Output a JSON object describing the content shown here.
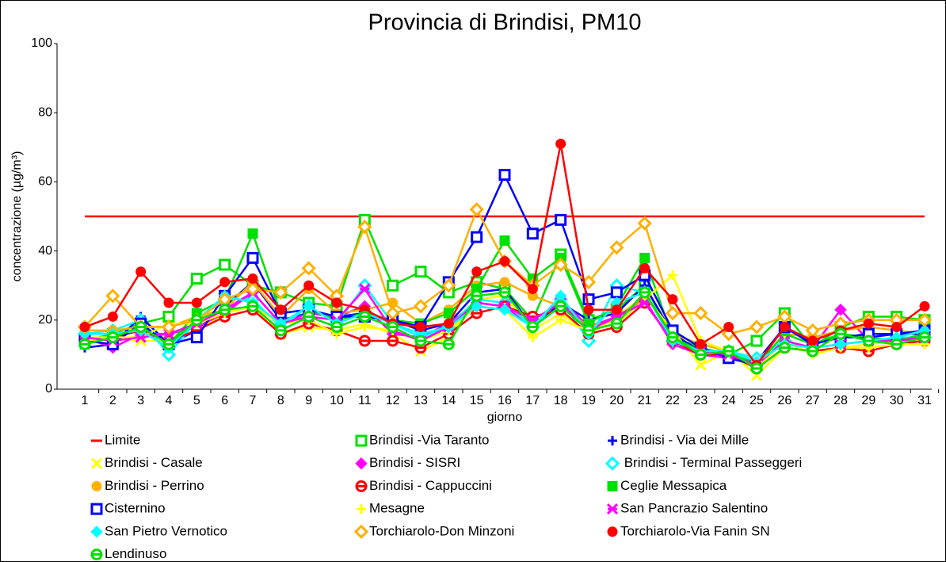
{
  "chart_data": {
    "type": "line",
    "title": "Provincia di Brindisi, PM10",
    "x_label": "giorno",
    "y_label": "concentrazione (µg/m³)",
    "categories": [
      "1",
      "2",
      "3",
      "4",
      "5",
      "6",
      "7",
      "8",
      "9",
      "10",
      "11",
      "12",
      "13",
      "14",
      "15",
      "16",
      "17",
      "18",
      "19",
      "20",
      "21",
      "22",
      "23",
      "24",
      "25",
      "26",
      "27",
      "28",
      "29",
      "30",
      "31"
    ],
    "ylim": [
      0,
      100
    ],
    "yticks": [
      0,
      20,
      40,
      60,
      80,
      100
    ],
    "grid": false,
    "series": [
      {
        "name": "Limite",
        "color": "#ff0000",
        "marker": "none",
        "values": [
          50,
          50,
          50,
          50,
          50,
          50,
          50,
          50,
          50,
          50,
          50,
          50,
          50,
          50,
          50,
          50,
          50,
          50,
          50,
          50,
          50,
          50,
          50,
          50,
          50,
          50,
          50,
          50,
          50,
          50,
          50
        ]
      },
      {
        "name": "Brindisi -Via Taranto",
        "color": "#00e000",
        "marker": "square-open",
        "values": [
          14,
          16,
          19,
          21,
          32,
          36,
          30,
          28,
          25,
          24,
          49,
          30,
          34,
          28,
          31,
          29,
          20,
          39,
          20,
          23,
          30,
          15,
          12,
          10,
          14,
          22,
          12,
          18,
          21,
          21,
          20
        ]
      },
      {
        "name": "Brindisi - Via dei Mille",
        "color": "#0000ff",
        "marker": "plus",
        "values": [
          12,
          13,
          21,
          13,
          17,
          24,
          31,
          20,
          22,
          21,
          22,
          20,
          17,
          19,
          28,
          29,
          18,
          25,
          20,
          22,
          30,
          16,
          11,
          10,
          8,
          18,
          13,
          15,
          15,
          16,
          16
        ]
      },
      {
        "name": "Brindisi - Casale",
        "color": "#ffff00",
        "marker": "x",
        "values": [
          15,
          15,
          14,
          14,
          17,
          22,
          24,
          16,
          18,
          17,
          19,
          16,
          11,
          15,
          26,
          27,
          17,
          22,
          16,
          21,
          27,
          17,
          7,
          11,
          4,
          12,
          11,
          12,
          13,
          14,
          14
        ]
      },
      {
        "name": "Brindisi - SISRI",
        "color": "#ff00ff",
        "marker": "diamond",
        "values": [
          15,
          12,
          16,
          16,
          18,
          22,
          28,
          19,
          22,
          21,
          24,
          16,
          15,
          19,
          25,
          24,
          18,
          26,
          18,
          21,
          26,
          13,
          10,
          9,
          7,
          14,
          12,
          23,
          14,
          14,
          15
        ]
      },
      {
        "name": " Brindisi - Terminal Passeggeri",
        "color": "#00ffff",
        "marker": "diamond-open",
        "values": [
          16,
          17,
          20,
          10,
          20,
          26,
          26,
          18,
          24,
          19,
          30,
          19,
          15,
          18,
          26,
          25,
          18,
          26,
          14,
          30,
          28,
          14,
          11,
          11,
          9,
          14,
          12,
          13,
          14,
          15,
          15
        ]
      },
      {
        "name": "Brindisi - Perrino",
        "color": "#ffb000",
        "marker": "circle",
        "values": [
          17,
          17,
          18,
          18,
          21,
          23,
          31,
          21,
          29,
          22,
          23,
          25,
          19,
          23,
          30,
          31,
          27,
          24,
          18,
          20,
          27,
          16,
          13,
          11,
          7,
          16,
          15,
          17,
          18,
          17,
          16
        ]
      },
      {
        "name": "Brindisi - Cappuccini",
        "color": "#ff0000",
        "marker": "circle-minus",
        "values": [
          14,
          15,
          17,
          14,
          17,
          21,
          23,
          16,
          19,
          17,
          14,
          14,
          12,
          16,
          22,
          24,
          21,
          23,
          16,
          18,
          25,
          14,
          10,
          10,
          6,
          12,
          11,
          12,
          11,
          13,
          14
        ]
      },
      {
        "name": "Ceglie Messapica",
        "color": "#00e000",
        "marker": "square",
        "values": [
          13,
          15,
          18,
          13,
          22,
          26,
          45,
          22,
          23,
          20,
          22,
          20,
          19,
          22,
          29,
          43,
          32,
          38,
          19,
          24,
          38,
          15,
          11,
          11,
          7,
          16,
          13,
          16,
          15,
          14,
          16
        ]
      },
      {
        "name": "Cisternino",
        "color": "#0000ff",
        "marker": "square-open",
        "values": [
          14,
          13,
          19,
          13,
          15,
          27,
          38,
          22,
          23,
          21,
          21,
          20,
          18,
          31,
          44,
          62,
          45,
          49,
          26,
          28,
          33,
          17,
          12,
          9,
          7,
          18,
          13,
          15,
          16,
          16,
          17
        ]
      },
      {
        "name": "Mesagne",
        "color": "#ffff00",
        "marker": "plus",
        "values": [
          14,
          15,
          15,
          19,
          19,
          22,
          24,
          19,
          20,
          16,
          18,
          17,
          14,
          17,
          24,
          23,
          15,
          20,
          17,
          19,
          26,
          33,
          14,
          11,
          6,
          14,
          10,
          12,
          12,
          13,
          13
        ]
      },
      {
        "name": "San Pancrazio Salentino",
        "color": "#ff00ff",
        "marker": "star",
        "values": [
          15,
          14,
          15,
          16,
          19,
          23,
          28,
          19,
          21,
          20,
          29,
          17,
          14,
          18,
          25,
          24,
          20,
          25,
          17,
          21,
          25,
          14,
          11,
          10,
          7,
          14,
          12,
          13,
          14,
          14,
          15
        ]
      },
      {
        "name": "San Pietro Vernotico",
        "color": "#00ffff",
        "marker": "diamond",
        "values": [
          16,
          16,
          17,
          12,
          20,
          27,
          25,
          19,
          24,
          19,
          22,
          19,
          16,
          18,
          24,
          23,
          18,
          27,
          16,
          25,
          28,
          14,
          11,
          11,
          8,
          13,
          12,
          13,
          14,
          15,
          17
        ]
      },
      {
        "name": "Torchiarolo-Don Minzoni",
        "color": "#ffb000",
        "marker": "diamond-open",
        "values": [
          18,
          27,
          18,
          18,
          20,
          26,
          29,
          28,
          35,
          27,
          47,
          22,
          24,
          30,
          52,
          37,
          30,
          36,
          31,
          41,
          48,
          22,
          22,
          16,
          18,
          21,
          17,
          19,
          20,
          20,
          20
        ]
      },
      {
        "name": "Torchiarolo-Via Fanin SN",
        "color": "#ff0000",
        "marker": "circle",
        "values": [
          18,
          21,
          34,
          25,
          25,
          31,
          32,
          23,
          30,
          25,
          23,
          19,
          18,
          19,
          34,
          37,
          29,
          71,
          23,
          23,
          35,
          26,
          13,
          18,
          7,
          18,
          14,
          17,
          19,
          18,
          24
        ]
      },
      {
        "name": "Lendinuso",
        "color": "#00e000",
        "marker": "circle-minus",
        "values": [
          13,
          15,
          18,
          13,
          20,
          23,
          24,
          17,
          21,
          18,
          21,
          18,
          14,
          13,
          27,
          28,
          18,
          24,
          17,
          19,
          28,
          15,
          10,
          11,
          6,
          12,
          11,
          16,
          14,
          13,
          15
        ]
      }
    ]
  }
}
